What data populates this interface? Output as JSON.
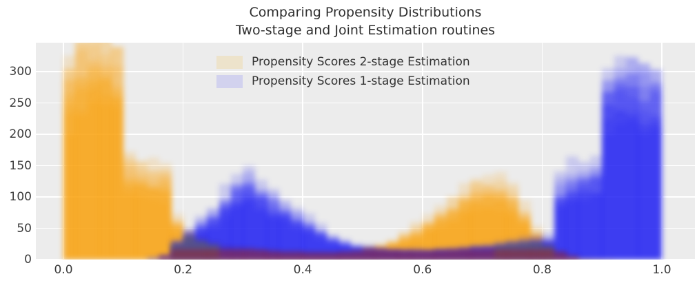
{
  "title": {
    "line1": "Comparing Propensity Distributions",
    "line2": "Two-stage and Joint Estimation routines"
  },
  "legend": {
    "items": [
      {
        "label": "Propensity Scores 2-stage Estimation",
        "swatch": "#ede3cb"
      },
      {
        "label": "Propensity Scores 1-stage Estimation",
        "swatch": "#d2d2ee"
      }
    ]
  },
  "axes": {
    "y_ticks": [
      {
        "value": 0,
        "label": "0"
      },
      {
        "value": 50,
        "label": "50"
      },
      {
        "value": 100,
        "label": "100"
      },
      {
        "value": 150,
        "label": "150"
      },
      {
        "value": 200,
        "label": "200"
      },
      {
        "value": 250,
        "label": "250"
      },
      {
        "value": 300,
        "label": "300"
      }
    ],
    "x_ticks": [
      {
        "value": 0.0,
        "label": "0.0"
      },
      {
        "value": 0.2,
        "label": "0.2"
      },
      {
        "value": 0.4,
        "label": "0.4"
      },
      {
        "value": 0.6,
        "label": "0.6"
      },
      {
        "value": 0.8,
        "label": "0.8"
      },
      {
        "value": 1.0,
        "label": "1.0"
      }
    ]
  },
  "style": {
    "figure_bg": "#ffffff",
    "axes_bg": "#ececec",
    "grid_color": "#ffffff",
    "tick_color": "#3b3b3b",
    "title_color": "#2f2f2f",
    "orange_rgb": "250,160,10",
    "blue_rgb": "28,28,242",
    "overlap_maroon": "rgba(150,38,48,0.55)",
    "overlap_olive": "rgba(118,124,34,0.40)"
  },
  "chart_data": {
    "type": "bar",
    "subtype": "overlaid-histograms-with-translucent-replicates",
    "title": "Comparing Propensity Distributions\nTwo-stage and Joint Estimation routines",
    "xlabel": "",
    "ylabel": "",
    "xlim": [
      -0.045,
      1.055
    ],
    "ylim": [
      0,
      346
    ],
    "grid": true,
    "legend_position": "upper center",
    "bin_start": 0.0,
    "bin_width": 0.02,
    "series": [
      {
        "name": "Propensity Scores 2-stage Estimation",
        "color": "orange",
        "mean_counts": [
          270,
          295,
          300,
          298,
          285,
          130,
          126,
          122,
          118,
          55,
          38,
          30,
          24,
          20,
          18,
          16,
          15,
          13,
          12,
          12,
          11,
          11,
          11,
          12,
          13,
          16,
          20,
          26,
          34,
          42,
          55,
          65,
          78,
          90,
          100,
          108,
          105,
          95,
          68,
          38,
          22,
          12,
          6,
          3,
          2,
          1,
          0,
          0,
          0,
          0
        ]
      },
      {
        "name": "Propensity Scores 1-stage Estimation",
        "color": "blue",
        "mean_counts": [
          0,
          0,
          0,
          0,
          0,
          0,
          0,
          2,
          5,
          25,
          40,
          52,
          65,
          85,
          105,
          112,
          100,
          85,
          75,
          62,
          52,
          42,
          32,
          25,
          20,
          17,
          15,
          14,
          13,
          13,
          13,
          14,
          15,
          16,
          18,
          20,
          22,
          25,
          27,
          28,
          30,
          100,
          115,
          120,
          125,
          250,
          270,
          268,
          258,
          248
        ]
      }
    ],
    "replicates": {
      "count": 10,
      "height_factors": [
        0.8,
        0.86,
        0.92,
        0.97,
        1.0,
        1.03,
        1.07,
        1.12,
        1.2,
        1.33
      ],
      "layer_alpha": 0.17,
      "jitter": 0.16,
      "haze_cap_above_mean": 55
    }
  }
}
